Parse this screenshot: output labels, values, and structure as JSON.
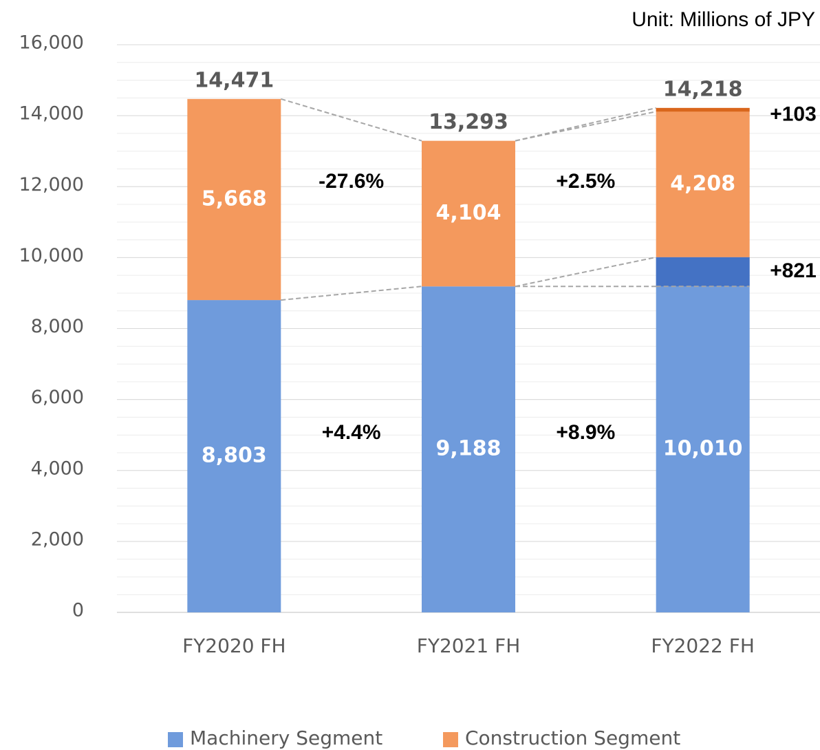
{
  "chart_data": {
    "type": "stacked_bar",
    "subtitle": "Unit: Millions of JPY",
    "categories": [
      "FY2020 FH",
      "FY2021 FH",
      "FY2022 FH"
    ],
    "series": [
      {
        "name": "Machinery Segment",
        "color": "#6f9bdc",
        "values": [
          8803,
          9188,
          10010
        ],
        "value_labels": [
          "8,803",
          "9,188",
          "10,010"
        ]
      },
      {
        "name": "Construction Segment",
        "color": "#f4995d",
        "values": [
          5668,
          4104,
          4208
        ],
        "value_labels": [
          "5,668",
          "4,104",
          "4,208"
        ]
      }
    ],
    "increments": [
      {
        "series": 0,
        "category": 2,
        "value": 821,
        "label": "+821",
        "color": "#4472c4"
      },
      {
        "series": 1,
        "category": 2,
        "value": 103,
        "label": "+103",
        "color": "#d9661c"
      }
    ],
    "totals": [
      14471,
      13293,
      14218
    ],
    "total_labels": [
      "14,471",
      "13,293",
      "14,218"
    ],
    "growth": [
      {
        "series": 1,
        "labels": [
          "-27.6%",
          "+2.5%"
        ]
      },
      {
        "series": 0,
        "labels": [
          "+4.4%",
          "+8.9%"
        ]
      }
    ],
    "ylim": [
      0,
      16000
    ],
    "yticks": [
      0,
      {
        "value": 2000,
        "label": "2,000"
      },
      {
        "value": 4000,
        "label": "4,000"
      },
      {
        "value": 6000,
        "label": "6,000"
      },
      {
        "value": 8000,
        "label": "8,000"
      },
      {
        "value": 10000,
        "label": "10,000"
      },
      {
        "value": 12000,
        "label": "12,000"
      },
      {
        "value": 14000,
        "label": "14,000"
      },
      {
        "value": 16000,
        "label": "16,000"
      }
    ],
    "minor_grid_step": 500,
    "grid": true,
    "legend": "bottom"
  }
}
